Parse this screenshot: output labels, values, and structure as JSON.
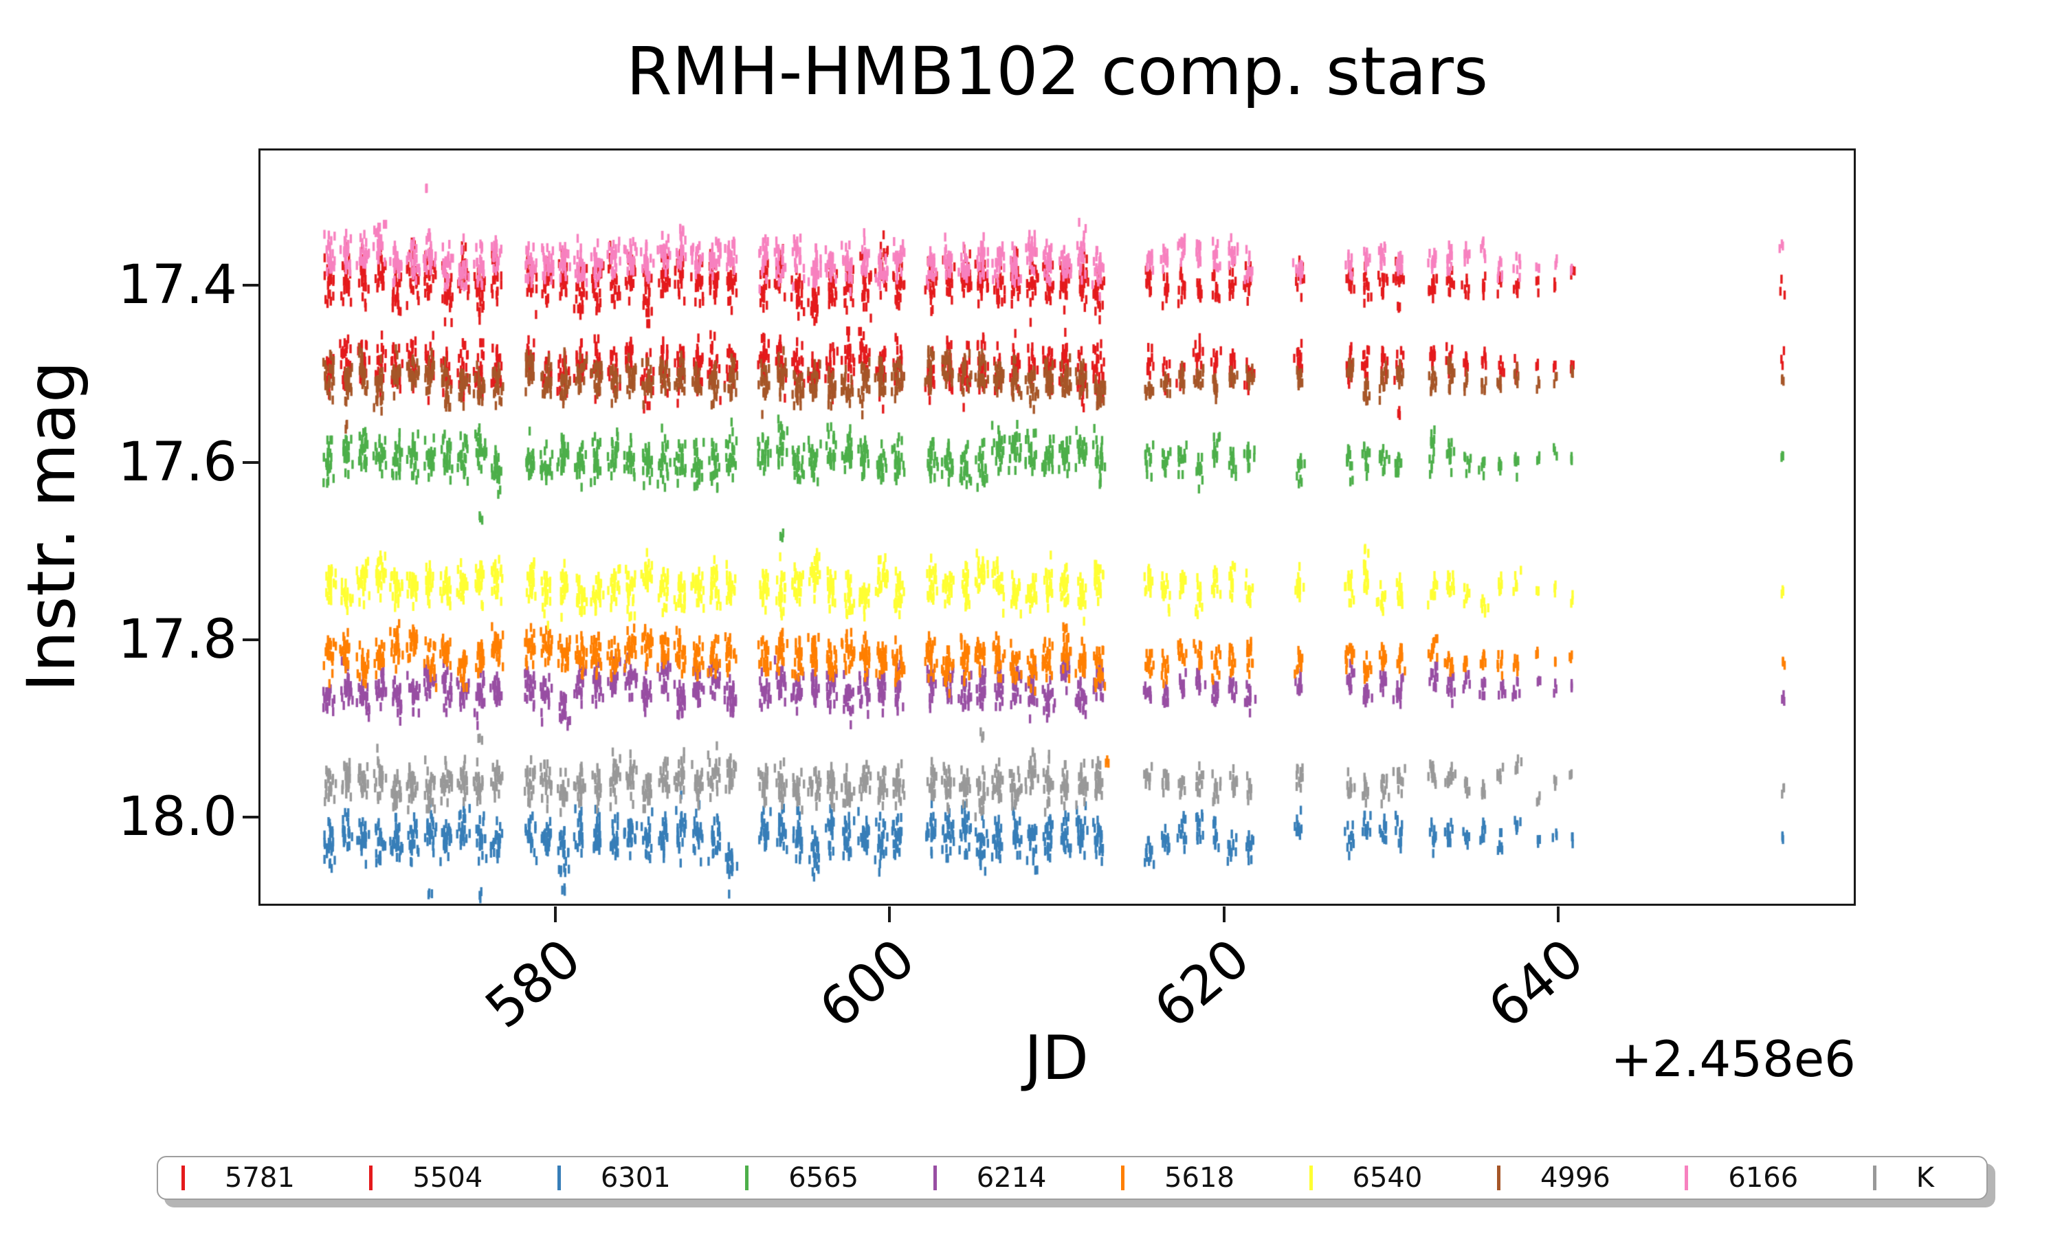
{
  "title": "RMH-HMB102 comp. stars",
  "axes": {
    "xlabel": "JD",
    "x_offset_label": "+2.458e6",
    "ylabel": "Instr. mag",
    "xticks": [
      "580",
      "600",
      "620",
      "640"
    ],
    "yticks": [
      "17.4",
      "17.6",
      "17.8",
      "18.0"
    ]
  },
  "legend": {
    "items": [
      {
        "label": "5781",
        "color": "#e41a1c"
      },
      {
        "label": "5504",
        "color": "#e41a1c"
      },
      {
        "label": "6301",
        "color": "#377eb8"
      },
      {
        "label": "6565",
        "color": "#4daf4a"
      },
      {
        "label": "6214",
        "color": "#984ea3"
      },
      {
        "label": "5618",
        "color": "#ff7f00"
      },
      {
        "label": "6540",
        "color": "#ffff33"
      },
      {
        "label": "4996",
        "color": "#a65628"
      },
      {
        "label": "6166",
        "color": "#f781bf"
      },
      {
        "label": "K",
        "color": "#999999"
      }
    ]
  },
  "chart_data": {
    "type": "scatter",
    "title": "RMH-HMB102 comp. stars",
    "xlabel": "JD",
    "x_axis_offset": "+2.458e6",
    "ylabel": "Instr. mag",
    "marker": "|",
    "y_axis_inverted": true,
    "xlim": [
      562.2,
      657.7
    ],
    "ylim": [
      18.1,
      17.25
    ],
    "xticks": [
      580,
      600,
      620,
      640
    ],
    "yticks": [
      17.4,
      17.6,
      17.8,
      18.0
    ],
    "series": [
      {
        "name": "5781",
        "color": "#e41a1c",
        "mean_mag": 17.49,
        "band_halfwidth_mag": 0.03,
        "note": "red, blends with 4996 band"
      },
      {
        "name": "5504",
        "color": "#e41a1c",
        "mean_mag": 17.398,
        "band_halfwidth_mag": 0.03,
        "note": "red, blends with 6166 band"
      },
      {
        "name": "6301",
        "color": "#377eb8",
        "mean_mag": 18.022,
        "band_halfwidth_mag": 0.028
      },
      {
        "name": "6565",
        "color": "#4daf4a",
        "mean_mag": 17.595,
        "band_halfwidth_mag": 0.026
      },
      {
        "name": "6214",
        "color": "#984ea3",
        "mean_mag": 17.856,
        "band_halfwidth_mag": 0.024
      },
      {
        "name": "5618",
        "color": "#ff7f00",
        "mean_mag": 17.82,
        "band_halfwidth_mag": 0.024
      },
      {
        "name": "6540",
        "color": "#ffff33",
        "mean_mag": 17.74,
        "band_halfwidth_mag": 0.026
      },
      {
        "name": "4996",
        "color": "#a65628",
        "mean_mag": 17.508,
        "band_halfwidth_mag": 0.024
      },
      {
        "name": "6166",
        "color": "#f781bf",
        "mean_mag": 17.372,
        "band_halfwidth_mag": 0.024
      },
      {
        "name": "K",
        "color": "#999999",
        "mean_mag": 17.962,
        "band_halfwidth_mag": 0.024
      }
    ],
    "nights": {
      "large": [
        566.5,
        567.5,
        568.5,
        569.5,
        570.5,
        571.5,
        572.5,
        573.5,
        574.5,
        575.5,
        576.5,
        578.5,
        579.5,
        580.5,
        581.5,
        582.5,
        583.5,
        584.5,
        585.5,
        586.5,
        587.5,
        588.5,
        589.5,
        590.5,
        592.5,
        593.5,
        594.5,
        595.5,
        596.5,
        597.5,
        598.5,
        599.5,
        600.5,
        602.5,
        603.5,
        604.5,
        605.5,
        606.5,
        607.5,
        608.5,
        609.5,
        610.5,
        611.5,
        612.5
      ],
      "medium": [
        615.5,
        616.5,
        617.5,
        618.5,
        619.5,
        620.5,
        621.5,
        624.5,
        627.5,
        628.5,
        629.5,
        630.5,
        632.5,
        633.5
      ],
      "small": [
        634.5,
        635.5,
        636.5,
        637.5
      ],
      "tiny": [
        638.8,
        639.8,
        640.8,
        653.4
      ]
    },
    "outliers": [
      {
        "series": "6166",
        "jd": 572.3,
        "mag": 17.292
      },
      {
        "series": "5504",
        "jd": 588.5,
        "mag": 17.47
      },
      {
        "series": "6565",
        "jd": 575.5,
        "mag": 17.66
      },
      {
        "series": "6565",
        "jd": 593.5,
        "mag": 17.685
      },
      {
        "series": "6301",
        "jd": 572.5,
        "mag": 18.085
      },
      {
        "series": "6301",
        "jd": 575.5,
        "mag": 18.09
      },
      {
        "series": "6301",
        "jd": 580.5,
        "mag": 18.08
      },
      {
        "series": "K",
        "jd": 575.5,
        "mag": 17.915
      },
      {
        "series": "K",
        "jd": 605.5,
        "mag": 17.91
      },
      {
        "series": "5618",
        "jd": 613.0,
        "mag": 17.935
      },
      {
        "series": "5781",
        "jd": 630.5,
        "mag": 17.425
      },
      {
        "series": "5781",
        "jd": 630.5,
        "mag": 17.545
      },
      {
        "series": "4996",
        "jd": 567.5,
        "mag": 17.56
      },
      {
        "series": "6540",
        "jd": 628.5,
        "mag": 17.7
      }
    ]
  }
}
